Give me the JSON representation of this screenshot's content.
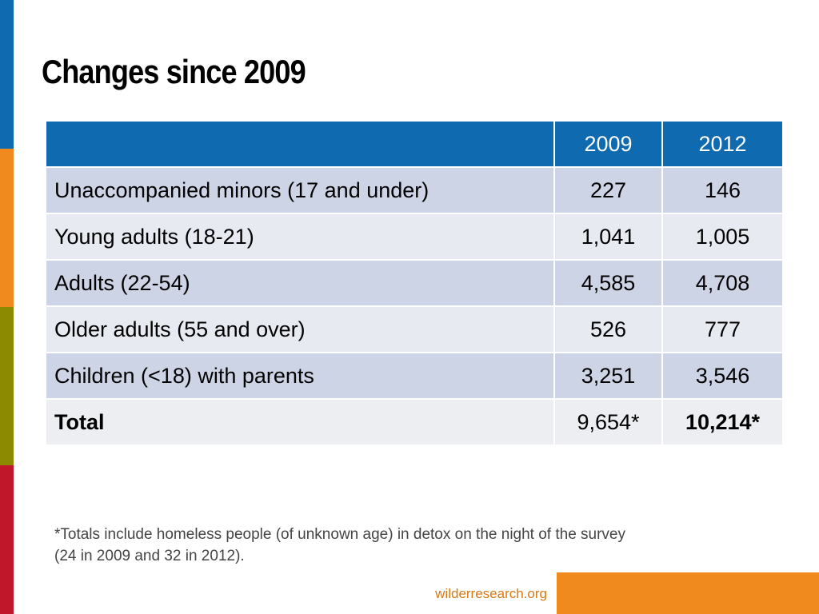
{
  "title": "Changes since 2009",
  "colors": {
    "stripe_blue": "#0f6ab0",
    "stripe_orange": "#f08a1e",
    "stripe_olive": "#8c8a00",
    "stripe_red": "#c0182a",
    "header_bg": "#0f6ab0",
    "footer_bar": "#f08a1e"
  },
  "table": {
    "headers": [
      "",
      "2009",
      "2012"
    ],
    "rows": [
      {
        "label": "Unaccompanied minors (17 and under)",
        "v2009": "227",
        "v2012": "146"
      },
      {
        "label": "Young adults (18-21)",
        "v2009": "1,041",
        "v2012": "1,005"
      },
      {
        "label": "Adults (22-54)",
        "v2009": "4,585",
        "v2012": "4,708"
      },
      {
        "label": "Older adults (55 and over)",
        "v2009": "526",
        "v2012": "777"
      },
      {
        "label": "Children (<18) with parents",
        "v2009": "3,251",
        "v2012": "3,546"
      },
      {
        "label": "Total",
        "v2009": "9,654*",
        "v2012": "10,214*"
      }
    ]
  },
  "footnote": {
    "line1": "*Totals include homeless people (of unknown age) in detox on the night of the survey",
    "line2": "(24 in 2009 and 32 in 2012)."
  },
  "footer": {
    "link": "wilderresearch.org"
  }
}
